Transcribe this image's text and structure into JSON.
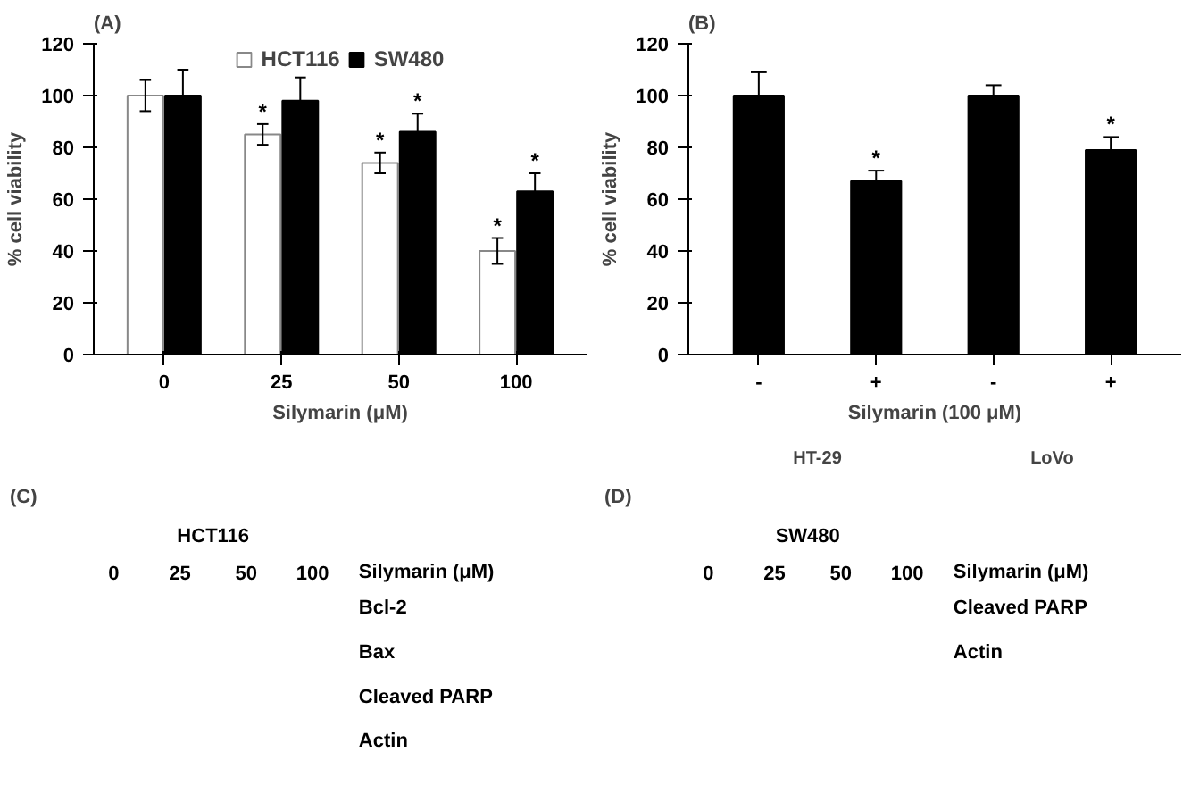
{
  "chart_data": [
    {
      "type": "bar",
      "title": "(A)",
      "categories": [
        "0",
        "25",
        "50",
        "100"
      ],
      "xlabel": "Silymarin (μM)",
      "ylabel": "% cell viability",
      "ylim": [
        0,
        120
      ],
      "yticks": [
        0,
        20,
        40,
        60,
        80,
        100,
        120
      ],
      "grid": false,
      "legend": "top",
      "series": [
        {
          "name": "HCT116",
          "color": "#ffffff",
          "values": [
            100,
            85,
            74,
            40
          ],
          "errors": [
            6,
            4,
            4,
            5
          ]
        },
        {
          "name": "SW480",
          "color": "#000000",
          "values": [
            100,
            98,
            86,
            63
          ],
          "errors": [
            10,
            9,
            7,
            7
          ]
        }
      ],
      "annotations": [
        {
          "text": "*",
          "x": "25",
          "y": 85
        },
        {
          "text": "*",
          "x": "50",
          "y": 74
        },
        {
          "text": "*",
          "x": "50",
          "y": 86
        },
        {
          "text": "*",
          "x": "100",
          "y": 40
        },
        {
          "text": "*",
          "x": "100",
          "y": 63
        }
      ]
    },
    {
      "type": "bar",
      "title": "(B)",
      "categories": [
        "-",
        "+",
        "-",
        "+"
      ],
      "xlabel": "Silymarin (100 μM)",
      "ylabel": "% cell viability",
      "ylim": [
        0,
        120
      ],
      "yticks": [
        0,
        20,
        40,
        60,
        80,
        100,
        120
      ],
      "grid": false,
      "series": [
        {
          "color": "#000000",
          "values": [
            100,
            67,
            100,
            79
          ],
          "errors": [
            9,
            4,
            4,
            5
          ]
        }
      ],
      "annotations": [
        {
          "text": "*",
          "y": 67
        },
        {
          "text": "*",
          "y": 79
        },
        "HT-29",
        "LoVo"
      ]
    },
    {
      "type": "other",
      "title": "(C)",
      "subtitle": "HCT116",
      "categories": [
        "0",
        "25",
        "50",
        "100"
      ],
      "xlabel": "Silymarin (μM)",
      "y_categories": [
        "Bcl-2",
        "Bax",
        "Cleaved PARP",
        "Actin"
      ]
    },
    {
      "type": "other",
      "title": "(D)",
      "subtitle": "SW480",
      "categories": [
        "0",
        "25",
        "50",
        "100"
      ],
      "xlabel": "Silymarin (μM)",
      "y_categories": [
        "Cleaved PARP",
        "Actin"
      ]
    }
  ]
}
